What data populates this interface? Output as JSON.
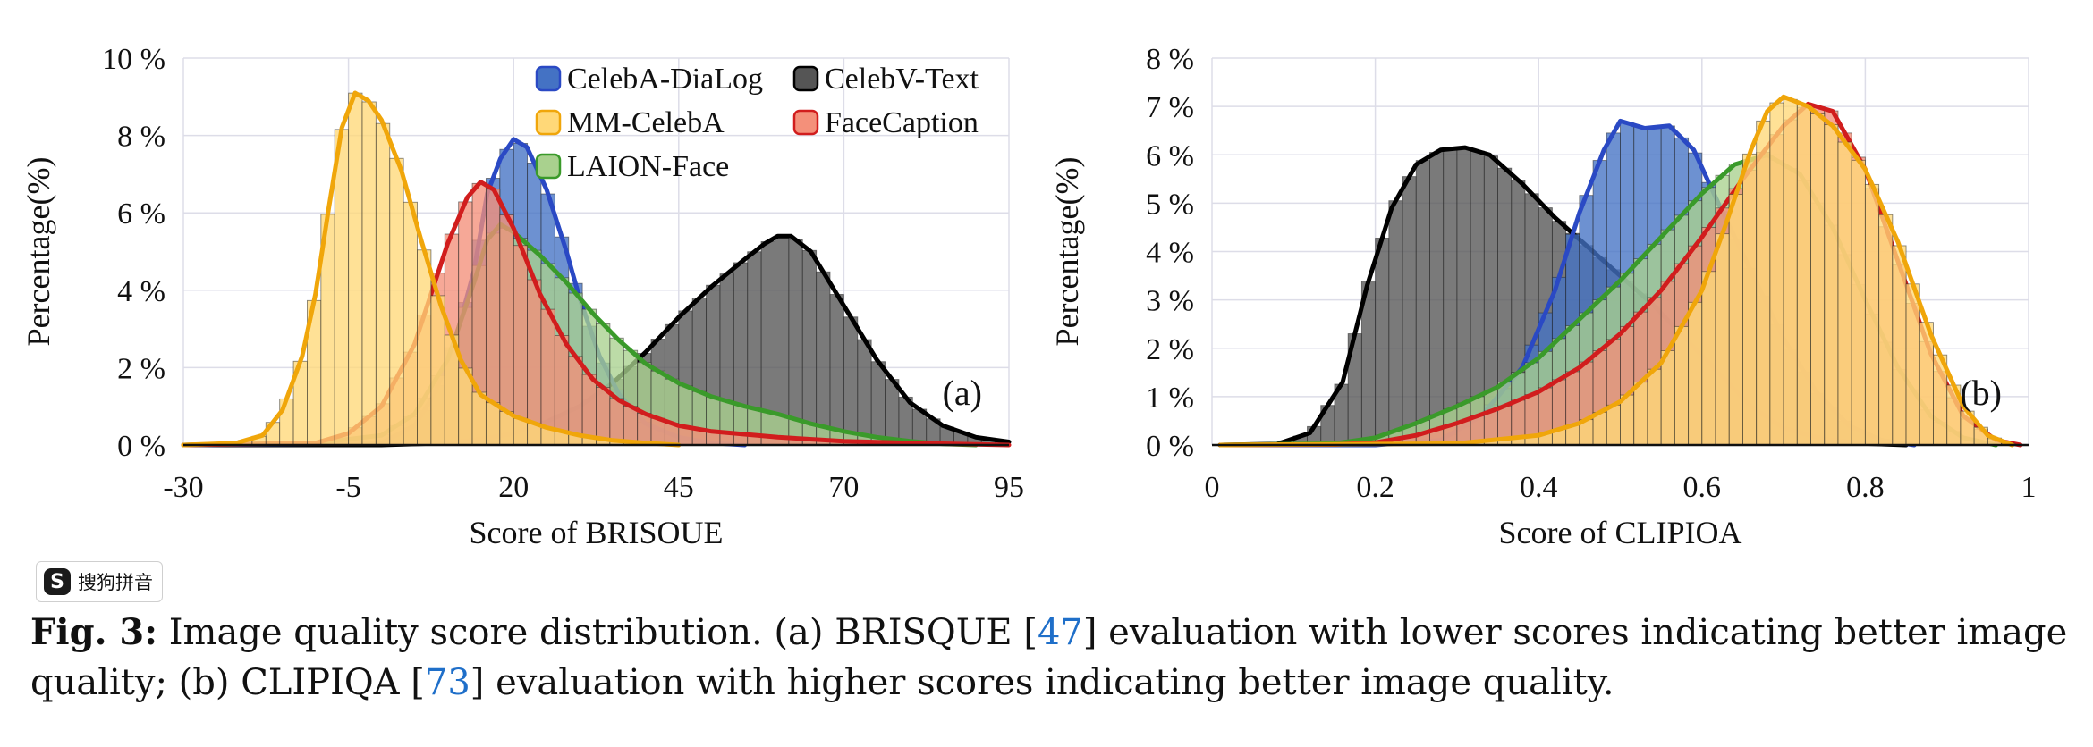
{
  "chart_data": [
    {
      "type": "area",
      "panel_label": "(a)",
      "xlabel": "Score of BRISOUE",
      "ylabel": "Percentage(%)",
      "xlim": [
        -30,
        95
      ],
      "ylim": [
        0,
        10
      ],
      "x_ticks": [
        "-30",
        "-5",
        "20",
        "45",
        "70",
        "95"
      ],
      "y_ticks": [
        "0 %",
        "2 %",
        "4 %",
        "6 %",
        "8 %",
        "10 %"
      ],
      "grid": true,
      "legend_position": "top-right",
      "series": [
        {
          "name": "CelebV-Text",
          "color": "#555555",
          "line": "#000000",
          "points": [
            [
              -30,
              0
            ],
            [
              0,
              0
            ],
            [
              10,
              0.05
            ],
            [
              15,
              0.15
            ],
            [
              20,
              0.3
            ],
            [
              25,
              0.6
            ],
            [
              30,
              1.0
            ],
            [
              35,
              1.6
            ],
            [
              40,
              2.4
            ],
            [
              45,
              3.3
            ],
            [
              50,
              4.1
            ],
            [
              55,
              4.8
            ],
            [
              58,
              5.2
            ],
            [
              60,
              5.4
            ],
            [
              62,
              5.4
            ],
            [
              65,
              5.0
            ],
            [
              70,
              3.6
            ],
            [
              75,
              2.2
            ],
            [
              80,
              1.1
            ],
            [
              85,
              0.5
            ],
            [
              90,
              0.2
            ],
            [
              95,
              0.08
            ]
          ]
        },
        {
          "name": "CelebA-DiaLog",
          "color": "#4472c4",
          "line": "#2a49c4",
          "points": [
            [
              -30,
              0
            ],
            [
              0,
              0.05
            ],
            [
              5,
              0.5
            ],
            [
              8,
              1.3
            ],
            [
              11,
              2.6
            ],
            [
              14,
              4.5
            ],
            [
              16,
              6.5
            ],
            [
              18,
              7.4
            ],
            [
              20,
              7.9
            ],
            [
              22,
              7.7
            ],
            [
              25,
              6.6
            ],
            [
              28,
              5.0
            ],
            [
              30,
              3.8
            ],
            [
              33,
              2.3
            ],
            [
              36,
              1.3
            ],
            [
              40,
              0.55
            ],
            [
              45,
              0.2
            ],
            [
              50,
              0.05
            ],
            [
              55,
              0
            ]
          ]
        },
        {
          "name": "LAION-Face",
          "color": "#a9d18e",
          "line": "#3a9a2a",
          "points": [
            [
              -30,
              0
            ],
            [
              -10,
              0.05
            ],
            [
              0,
              0.25
            ],
            [
              5,
              0.8
            ],
            [
              10,
              2.2
            ],
            [
              14,
              4.2
            ],
            [
              16,
              5.3
            ],
            [
              18,
              5.7
            ],
            [
              20,
              5.5
            ],
            [
              24,
              4.9
            ],
            [
              28,
              4.2
            ],
            [
              32,
              3.4
            ],
            [
              36,
              2.7
            ],
            [
              40,
              2.1
            ],
            [
              45,
              1.6
            ],
            [
              50,
              1.25
            ],
            [
              55,
              1.0
            ],
            [
              60,
              0.8
            ],
            [
              65,
              0.55
            ],
            [
              70,
              0.35
            ],
            [
              75,
              0.2
            ],
            [
              80,
              0.1
            ],
            [
              85,
              0.03
            ],
            [
              90,
              0
            ]
          ]
        },
        {
          "name": "FaceCaption",
          "color": "#f4907a",
          "line": "#d11d1d",
          "points": [
            [
              -30,
              0
            ],
            [
              -10,
              0.05
            ],
            [
              -5,
              0.3
            ],
            [
              0,
              1.0
            ],
            [
              5,
              2.6
            ],
            [
              10,
              5.2
            ],
            [
              13,
              6.4
            ],
            [
              15,
              6.8
            ],
            [
              17,
              6.6
            ],
            [
              20,
              5.6
            ],
            [
              24,
              3.9
            ],
            [
              28,
              2.6
            ],
            [
              32,
              1.7
            ],
            [
              36,
              1.15
            ],
            [
              40,
              0.8
            ],
            [
              45,
              0.5
            ],
            [
              50,
              0.35
            ],
            [
              60,
              0.2
            ],
            [
              70,
              0.1
            ],
            [
              80,
              0.05
            ],
            [
              95,
              0
            ]
          ]
        },
        {
          "name": "MM-CelebA",
          "color": "#ffd878",
          "line": "#f0a60a",
          "points": [
            [
              -30,
              0
            ],
            [
              -22,
              0.05
            ],
            [
              -18,
              0.25
            ],
            [
              -15,
              0.9
            ],
            [
              -12,
              2.3
            ],
            [
              -10,
              3.9
            ],
            [
              -8,
              6.1
            ],
            [
              -6,
              8.2
            ],
            [
              -4,
              9.1
            ],
            [
              -2,
              8.9
            ],
            [
              0,
              8.4
            ],
            [
              3,
              7.1
            ],
            [
              6,
              5.3
            ],
            [
              9,
              3.6
            ],
            [
              12,
              2.2
            ],
            [
              15,
              1.3
            ],
            [
              20,
              0.75
            ],
            [
              25,
              0.45
            ],
            [
              30,
              0.25
            ],
            [
              35,
              0.12
            ],
            [
              40,
              0.05
            ],
            [
              45,
              0
            ]
          ]
        }
      ],
      "legend": [
        "CelebA-DiaLog",
        "CelebV-Text",
        "MM-CelebA",
        "FaceCaption",
        "LAION-Face"
      ]
    },
    {
      "type": "area",
      "panel_label": "(b)",
      "xlabel": "Score of CLIPIOA",
      "ylabel": "Percentage(%)",
      "xlim": [
        0,
        1
      ],
      "ylim": [
        0,
        8
      ],
      "x_ticks": [
        "0",
        "0.2",
        "0.4",
        "0.6",
        "0.8",
        "1"
      ],
      "y_ticks": [
        "0 %",
        "1 %",
        "2 %",
        "3 %",
        "4 %",
        "5 %",
        "6 %",
        "7 %",
        "8 %"
      ],
      "grid": true,
      "series": [
        {
          "name": "CelebV-Text",
          "color": "#555555",
          "line": "#000000",
          "points": [
            [
              0.01,
              0
            ],
            [
              0.08,
              0.02
            ],
            [
              0.12,
              0.25
            ],
            [
              0.16,
              1.3
            ],
            [
              0.19,
              3.3
            ],
            [
              0.22,
              4.9
            ],
            [
              0.25,
              5.8
            ],
            [
              0.28,
              6.1
            ],
            [
              0.31,
              6.15
            ],
            [
              0.34,
              6.0
            ],
            [
              0.38,
              5.4
            ],
            [
              0.42,
              4.7
            ],
            [
              0.46,
              4.1
            ],
            [
              0.5,
              3.5
            ],
            [
              0.54,
              2.9
            ],
            [
              0.58,
              2.2
            ],
            [
              0.62,
              1.5
            ],
            [
              0.66,
              0.8
            ],
            [
              0.7,
              0.35
            ],
            [
              0.75,
              0.12
            ],
            [
              0.8,
              0.03
            ],
            [
              0.85,
              0
            ]
          ]
        },
        {
          "name": "CelebA-DiaLog",
          "color": "#4472c4",
          "line": "#2a49c4",
          "points": [
            [
              0.01,
              0
            ],
            [
              0.2,
              0
            ],
            [
              0.28,
              0.1
            ],
            [
              0.33,
              0.6
            ],
            [
              0.38,
              1.6
            ],
            [
              0.42,
              3.2
            ],
            [
              0.45,
              4.8
            ],
            [
              0.48,
              6.1
            ],
            [
              0.5,
              6.7
            ],
            [
              0.53,
              6.55
            ],
            [
              0.56,
              6.6
            ],
            [
              0.59,
              6.1
            ],
            [
              0.62,
              5.0
            ],
            [
              0.66,
              3.6
            ],
            [
              0.7,
              2.2
            ],
            [
              0.74,
              1.1
            ],
            [
              0.78,
              0.4
            ],
            [
              0.82,
              0.1
            ],
            [
              0.86,
              0
            ]
          ]
        },
        {
          "name": "LAION-Face",
          "color": "#a9d18e",
          "line": "#3a9a2a",
          "points": [
            [
              0.01,
              0
            ],
            [
              0.15,
              0.03
            ],
            [
              0.2,
              0.15
            ],
            [
              0.25,
              0.45
            ],
            [
              0.3,
              0.8
            ],
            [
              0.35,
              1.2
            ],
            [
              0.4,
              1.8
            ],
            [
              0.45,
              2.6
            ],
            [
              0.5,
              3.4
            ],
            [
              0.55,
              4.3
            ],
            [
              0.6,
              5.2
            ],
            [
              0.64,
              5.8
            ],
            [
              0.68,
              6.0
            ],
            [
              0.72,
              5.6
            ],
            [
              0.76,
              4.5
            ],
            [
              0.8,
              3.0
            ],
            [
              0.84,
              1.6
            ],
            [
              0.88,
              0.6
            ],
            [
              0.92,
              0.15
            ],
            [
              0.96,
              0
            ]
          ]
        },
        {
          "name": "FaceCaption",
          "color": "#f4907a",
          "line": "#d11d1d",
          "points": [
            [
              0.01,
              0
            ],
            [
              0.15,
              0.01
            ],
            [
              0.2,
              0.05
            ],
            [
              0.25,
              0.2
            ],
            [
              0.3,
              0.45
            ],
            [
              0.35,
              0.75
            ],
            [
              0.4,
              1.1
            ],
            [
              0.45,
              1.6
            ],
            [
              0.5,
              2.3
            ],
            [
              0.55,
              3.2
            ],
            [
              0.6,
              4.3
            ],
            [
              0.65,
              5.5
            ],
            [
              0.7,
              6.6
            ],
            [
              0.73,
              7.05
            ],
            [
              0.76,
              6.9
            ],
            [
              0.8,
              5.7
            ],
            [
              0.84,
              3.8
            ],
            [
              0.88,
              1.9
            ],
            [
              0.92,
              0.6
            ],
            [
              0.96,
              0.1
            ],
            [
              0.99,
              0
            ]
          ]
        },
        {
          "name": "MM-CelebA",
          "color": "#ffd878",
          "line": "#f0a60a",
          "points": [
            [
              0.01,
              0
            ],
            [
              0.3,
              0.03
            ],
            [
              0.4,
              0.2
            ],
            [
              0.45,
              0.45
            ],
            [
              0.5,
              0.9
            ],
            [
              0.55,
              1.7
            ],
            [
              0.6,
              3.2
            ],
            [
              0.63,
              4.6
            ],
            [
              0.66,
              6.1
            ],
            [
              0.68,
              6.9
            ],
            [
              0.7,
              7.2
            ],
            [
              0.73,
              7.0
            ],
            [
              0.76,
              6.6
            ],
            [
              0.8,
              5.7
            ],
            [
              0.84,
              4.2
            ],
            [
              0.88,
              2.3
            ],
            [
              0.92,
              0.8
            ],
            [
              0.95,
              0.2
            ],
            [
              0.98,
              0
            ]
          ]
        }
      ]
    }
  ],
  "ime_badge": {
    "logo": "S",
    "text": "搜狗拼音"
  },
  "caption": {
    "label": "Fig. 3:",
    "part1": " Image quality score distribution. (a) BRISQUE [",
    "ref1": "47",
    "part2": "] evaluation with lower scores indicating better image quality; (b) CLIPIQA [",
    "ref2": "73",
    "part3": "] evaluation with higher scores indicating better image quality."
  }
}
